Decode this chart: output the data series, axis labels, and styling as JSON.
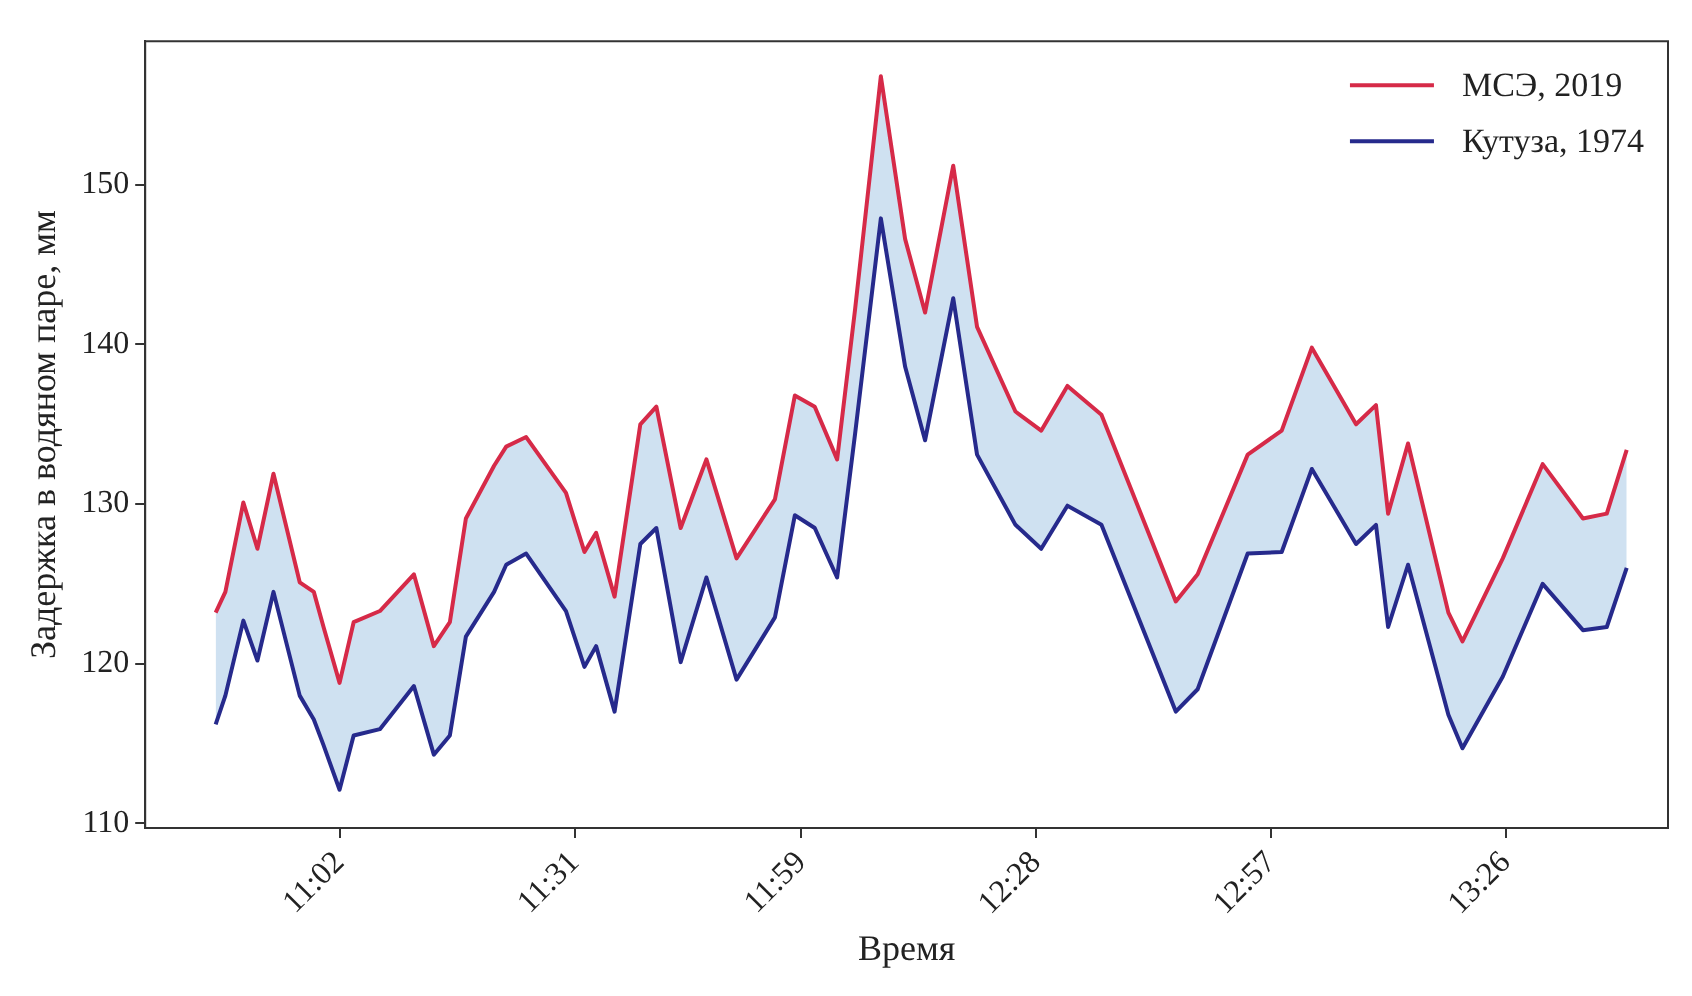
{
  "chart_data": {
    "type": "line",
    "xlabel": "Время",
    "ylabel": "Задержка в водяном паре, мм",
    "x": [
      10.778,
      10.798,
      10.835,
      10.864,
      10.897,
      10.951,
      10.98,
      11.0,
      11.033,
      11.062,
      11.116,
      11.186,
      11.227,
      11.26,
      11.293,
      11.351,
      11.376,
      11.417,
      11.499,
      11.537,
      11.561,
      11.599,
      11.652,
      11.685,
      11.735,
      11.788,
      11.85,
      11.929,
      11.97,
      12.011,
      12.057,
      12.094,
      12.147,
      12.197,
      12.238,
      12.296,
      12.345,
      12.424,
      12.477,
      12.531,
      12.601,
      12.754,
      12.799,
      12.902,
      12.972,
      13.034,
      13.125,
      13.166,
      13.191,
      13.232,
      13.315,
      13.344,
      13.427,
      13.509,
      13.592,
      13.641,
      13.682
    ],
    "series": [
      {
        "name": "МСЭ, 2019",
        "color": "#d62a48",
        "values": [
          123.2,
          124.5,
          130.1,
          127.2,
          131.9,
          125.1,
          124.5,
          122.3,
          118.8,
          122.6,
          123.3,
          125.6,
          121.1,
          122.6,
          129.1,
          132.4,
          133.6,
          134.2,
          130.7,
          127.0,
          128.2,
          124.2,
          135.0,
          136.1,
          128.5,
          132.8,
          126.6,
          130.3,
          136.8,
          136.1,
          132.8,
          142.2,
          156.8,
          146.6,
          142.0,
          151.2,
          141.1,
          135.8,
          134.6,
          137.4,
          135.6,
          123.9,
          125.6,
          133.1,
          134.6,
          139.8,
          135.0,
          136.2,
          129.4,
          133.8,
          123.2,
          121.4,
          126.6,
          132.5,
          129.1,
          129.4,
          133.4
        ],
        "lower": [
          116.2,
          118.0,
          122.7,
          120.2,
          124.5,
          118.0,
          116.5,
          114.9,
          112.1,
          115.5,
          115.9,
          118.6,
          114.3,
          115.5,
          121.7,
          124.5,
          126.2,
          126.9,
          123.3,
          119.8,
          121.1,
          117.0,
          127.5,
          128.5,
          120.1,
          125.4,
          119.0,
          122.9,
          129.3,
          128.5,
          125.4,
          134.4,
          147.9,
          138.6,
          134.0,
          142.9,
          133.1,
          128.7,
          127.2,
          129.9,
          128.7,
          117.0,
          118.4,
          126.9,
          127.0,
          132.2,
          127.5,
          128.7,
          122.3,
          126.2,
          116.8,
          114.7,
          119.2,
          125.0,
          122.1,
          122.3,
          126.0
        ],
        "upper": [
          123.2,
          124.5,
          130.1,
          127.2,
          131.9,
          125.1,
          124.5,
          122.3,
          118.8,
          122.6,
          123.3,
          125.6,
          121.1,
          122.6,
          129.1,
          132.4,
          133.6,
          134.2,
          130.7,
          127.0,
          128.2,
          124.2,
          135.0,
          136.1,
          128.5,
          132.8,
          126.6,
          130.3,
          136.8,
          136.1,
          132.8,
          142.2,
          156.8,
          146.6,
          142.0,
          151.2,
          141.1,
          135.8,
          134.6,
          137.4,
          135.6,
          123.9,
          125.6,
          133.1,
          134.6,
          139.8,
          135.0,
          136.2,
          129.4,
          133.8,
          123.2,
          121.4,
          126.6,
          132.5,
          129.1,
          129.4,
          133.4
        ]
      },
      {
        "name": "Кутуза, 1974",
        "color": "#262a8c",
        "values": [
          116.2,
          118.0,
          122.7,
          120.2,
          124.5,
          118.0,
          116.5,
          114.9,
          112.1,
          115.5,
          115.9,
          118.6,
          114.3,
          115.5,
          121.7,
          124.5,
          126.2,
          126.9,
          123.3,
          119.8,
          121.1,
          117.0,
          127.5,
          128.5,
          120.1,
          125.4,
          119.0,
          122.9,
          129.3,
          128.5,
          125.4,
          134.4,
          147.9,
          138.6,
          134.0,
          142.9,
          133.1,
          128.7,
          127.2,
          129.9,
          128.7,
          117.0,
          118.4,
          126.9,
          127.0,
          132.2,
          127.5,
          128.7,
          122.3,
          126.2,
          116.8,
          114.7,
          119.2,
          125.0,
          122.1,
          122.3,
          126.0
        ]
      }
    ],
    "xlim": [
      10.633,
      13.767
    ],
    "xticks": [
      {
        "value": 11.0333,
        "label": "11:02"
      },
      {
        "value": 11.5167,
        "label": "11:31"
      },
      {
        "value": 11.9833,
        "label": "11:59"
      },
      {
        "value": 12.4667,
        "label": "12:28"
      },
      {
        "value": 12.95,
        "label": "12:57"
      },
      {
        "value": 13.4333,
        "label": "13:26"
      }
    ],
    "ylim": [
      109.7,
      159
    ],
    "yticks": [
      110,
      120,
      130,
      140,
      150
    ],
    "legend": "top right",
    "grid": false,
    "marker": "none",
    "line_style": "solid"
  }
}
